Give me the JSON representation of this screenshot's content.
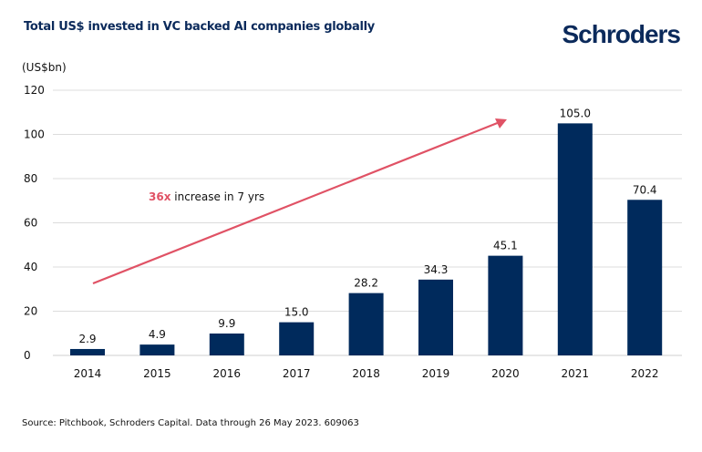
{
  "header": {
    "title": "Total US$ invested in VC backed AI companies globally",
    "logo": "Schroders"
  },
  "chart_data": {
    "type": "bar",
    "title": "Total US$ invested in VC backed AI companies globally",
    "ylabel": "(US$bn)",
    "xlabel": "",
    "categories": [
      "2014",
      "2015",
      "2016",
      "2017",
      "2018",
      "2019",
      "2020",
      "2021",
      "2022"
    ],
    "values": [
      2.9,
      4.9,
      9.9,
      15.0,
      28.2,
      34.3,
      45.1,
      105.0,
      70.4
    ],
    "value_labels": [
      "2.9",
      "4.9",
      "9.9",
      "15.0",
      "28.2",
      "34.3",
      "45.1",
      "105.0",
      "70.4"
    ],
    "ylim": [
      0,
      120
    ],
    "yticks": [
      0,
      20,
      40,
      60,
      80,
      100,
      120
    ],
    "grid": true,
    "bar_color": "#002a5c",
    "arrow_color": "#e05265",
    "annotation": {
      "highlight": "36x",
      "text": " increase in 7 yrs"
    }
  },
  "footer": {
    "source": "Source: Pitchbook, Schroders Capital. Data through 26 May 2023. 609063"
  }
}
